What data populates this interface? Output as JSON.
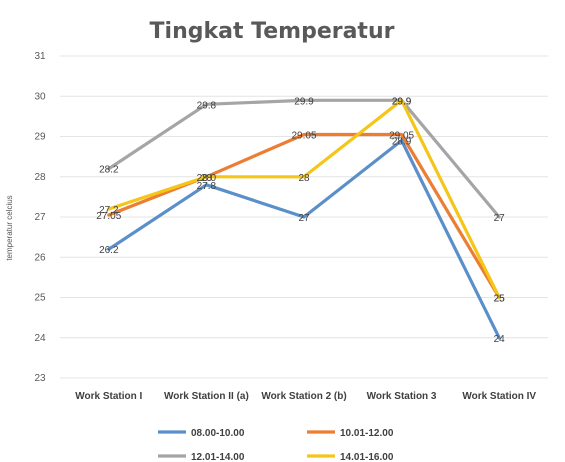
{
  "chart_data": {
    "type": "line",
    "title": "Tingkat Temperatur",
    "xlabel": "",
    "ylabel": "temperatur celcius",
    "ylim": [
      23,
      31
    ],
    "yticks": [
      "23",
      "24",
      "25",
      "26",
      "27",
      "28",
      "29",
      "30",
      "31"
    ],
    "categories": [
      "Work Station I",
      "Work Station II (a)",
      "Work Station 2 (b)",
      "Work Station 3",
      "Work Station IV"
    ],
    "series": [
      {
        "name": "08.00-10.00",
        "color": "#5b8fc9",
        "values": [
          26.2,
          27.8,
          27.0,
          28.9,
          24.0
        ],
        "labels": [
          "26.2",
          "27.8",
          "27",
          "28.9",
          "24"
        ]
      },
      {
        "name": "10.01-12.00",
        "color": "#ed7d31",
        "values": [
          27.05,
          28.0,
          29.05,
          29.05,
          25.0
        ],
        "labels": [
          "27.05",
          "28",
          "29.05",
          "29.05",
          "25"
        ]
      },
      {
        "name": "12.01-14.00",
        "color": "#a5a5a5",
        "values": [
          28.2,
          29.8,
          29.9,
          29.9,
          27.0
        ],
        "labels": [
          "28.2",
          "29.8",
          "29.9",
          "29.9",
          "27"
        ]
      },
      {
        "name": "14.01-16.00",
        "color": "#f5c518",
        "values": [
          27.2,
          28.0,
          28.0,
          29.9,
          25.0
        ],
        "labels": [
          "27.2",
          "28.0",
          "28",
          "29.9",
          "25"
        ]
      }
    ],
    "grid": true,
    "legend_position": "bottom"
  }
}
